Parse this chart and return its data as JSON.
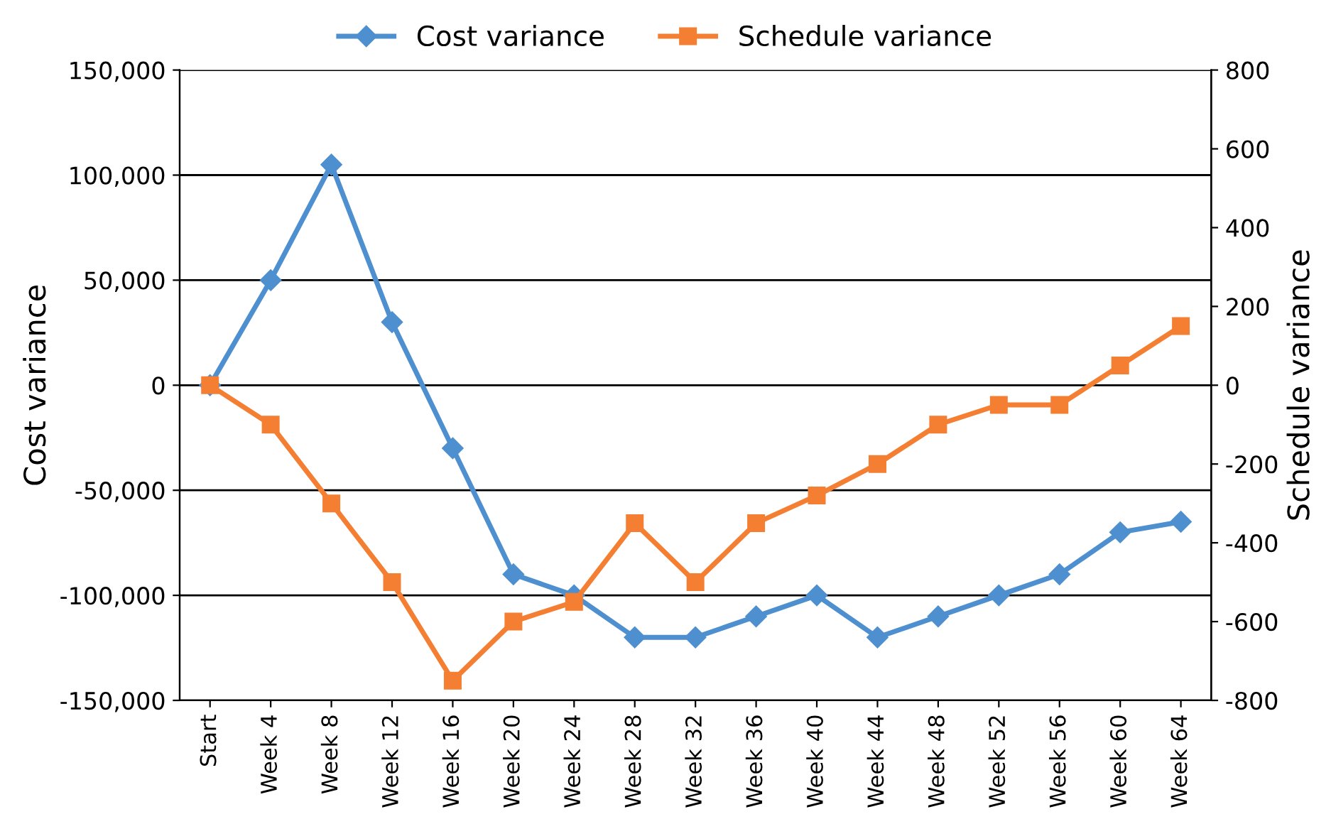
{
  "chart_data": {
    "type": "line",
    "categories": [
      "Start",
      "Week 4",
      "Week 8",
      "Week 12",
      "Week 16",
      "Week 20",
      "Week 24",
      "Week 28",
      "Week 32",
      "Week 36",
      "Week 40",
      "Week 44",
      "Week 48",
      "Week 52",
      "Week 56",
      "Week 60",
      "Week 64"
    ],
    "series": [
      {
        "name": "Cost variance",
        "color": "#4e8fcf",
        "marker": "diamond",
        "values": [
          0,
          50000,
          105000,
          30000,
          -30000,
          -90000,
          -100000,
          -120000,
          -120000,
          -110000,
          -100000,
          -120000,
          -110000,
          -100000,
          -90000,
          -70000,
          -65000
        ]
      },
      {
        "name": "Schedule variance",
        "color": "#f47f33",
        "marker": "square",
        "axis": "y2",
        "values": [
          0,
          -100,
          -300,
          -500,
          -750,
          -600,
          -550,
          -350,
          -500,
          -350,
          -280,
          -200,
          -100,
          -50,
          -50,
          50,
          150
        ]
      }
    ],
    "ylabel": "Cost variance",
    "y2label": "Schedule variance",
    "ylim": [
      -150000,
      150000
    ],
    "yticks": [
      {
        "value": -150000,
        "label": "-150,000"
      },
      {
        "value": -100000,
        "label": "-100,000"
      },
      {
        "value": -50000,
        "label": "-50,000"
      },
      0,
      {
        "value": 50000,
        "label": "50,000"
      },
      {
        "value": 100000,
        "label": "100,000"
      },
      {
        "value": 150000,
        "label": "150,000"
      }
    ],
    "y2lim": [
      -800,
      800
    ],
    "y2ticks": [
      -800,
      -600,
      -400,
      -200,
      0,
      200,
      400,
      600,
      800
    ],
    "grid": "y",
    "legend": "top",
    "line_style": "solid"
  }
}
